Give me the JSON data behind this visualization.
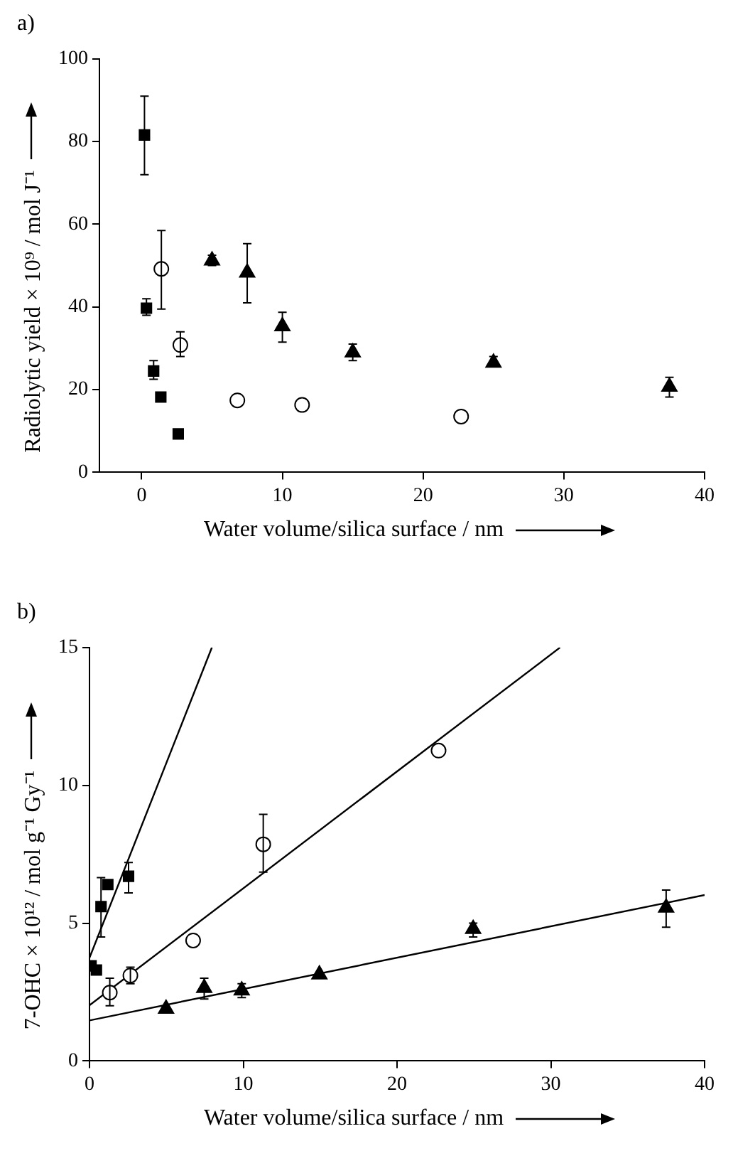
{
  "chart_data": [
    {
      "type": "scatter",
      "title": "a)",
      "xlabel": "Water volume/silica surface / nm",
      "ylabel": "Radiolytic yield × 10⁹ / mol J⁻¹",
      "xlim": [
        -3,
        40
      ],
      "xticks": [
        0,
        10,
        20,
        30,
        40
      ],
      "ylim": [
        0,
        100
      ],
      "yticks": [
        0,
        20,
        40,
        60,
        80,
        100
      ],
      "grid": false,
      "legend": false,
      "series": [
        {
          "color": "#000000",
          "marker": "square",
          "x": [
            0.2,
            0.34,
            0.85,
            1.36,
            2.6
          ],
          "values": [
            81.6,
            39.7,
            24.5,
            18.2,
            9.3
          ],
          "errors": [
            [
              72,
              91
            ],
            [
              38,
              42
            ],
            [
              22.5,
              27
            ],
            null,
            null
          ]
        },
        {
          "color": "#000000",
          "marker": "circle",
          "x": [
            1.4,
            2.75,
            6.8,
            11.4,
            22.7
          ],
          "values": [
            49.2,
            30.8,
            17.4,
            16.3,
            13.5
          ],
          "errors": [
            [
              39.5,
              58.5
            ],
            [
              28,
              34
            ],
            null,
            null,
            null
          ]
        },
        {
          "color": "#000000",
          "marker": "triangle",
          "x": [
            5,
            7.5,
            10,
            15,
            25,
            37.5
          ],
          "values": [
            51.2,
            48.3,
            35.3,
            29,
            26.5,
            20.7
          ],
          "errors": [
            [
              50,
              52.5
            ],
            [
              41,
              55.3
            ],
            [
              31.5,
              38.7
            ],
            [
              27,
              31
            ],
            [
              25.5,
              28
            ],
            [
              18.2,
              23
            ]
          ]
        }
      ]
    },
    {
      "type": "scatter",
      "title": "b)",
      "xlabel": "Water volume/silica surface / nm",
      "ylabel": "7-OHC × 10¹² / mol g⁻¹ Gy⁻¹",
      "xlim": [
        0,
        40
      ],
      "xticks": [
        0,
        10,
        20,
        30,
        40
      ],
      "ylim": [
        0,
        15
      ],
      "yticks": [
        0,
        5,
        10,
        15
      ],
      "grid": false,
      "legend": false,
      "series": [
        {
          "color": "#000000",
          "marker": "square",
          "x": [
            0.1,
            0.45,
            0.75,
            1.19,
            2.54
          ],
          "values": [
            3.45,
            3.3,
            5.6,
            6.4,
            6.7
          ],
          "errors": [
            null,
            null,
            [
              4.5,
              6.65
            ],
            null,
            [
              6.1,
              7.2
            ]
          ]
        },
        {
          "color": "#000000",
          "marker": "circle",
          "x": [
            1.32,
            2.66,
            6.74,
            11.3,
            22.7
          ],
          "values": [
            2.48,
            3.1,
            4.37,
            7.86,
            11.26
          ],
          "errors": [
            [
              2.0,
              3.0
            ],
            [
              2.8,
              3.4
            ],
            null,
            [
              6.85,
              8.95
            ],
            null
          ]
        },
        {
          "color": "#000000",
          "marker": "triangle",
          "x": [
            4.98,
            7.46,
            9.9,
            14.95,
            24.95,
            37.5
          ],
          "values": [
            1.89,
            2.65,
            2.56,
            3.14,
            4.79,
            5.56
          ],
          "errors": [
            null,
            [
              2.25,
              3.0
            ],
            [
              2.3,
              2.8
            ],
            null,
            [
              4.5,
              5.0
            ],
            [
              4.85,
              6.2
            ]
          ]
        },
        {
          "type": "line",
          "color": "#000000",
          "marker": "none",
          "x": [
            0,
            7.96
          ],
          "values": [
            3.74,
            15
          ]
        },
        {
          "type": "line",
          "color": "#000000",
          "marker": "none",
          "x": [
            0,
            30.6
          ],
          "values": [
            2.02,
            15
          ]
        },
        {
          "type": "line",
          "color": "#000000",
          "marker": "none",
          "x": [
            0,
            40
          ],
          "values": [
            1.47,
            6.02
          ]
        }
      ]
    }
  ]
}
